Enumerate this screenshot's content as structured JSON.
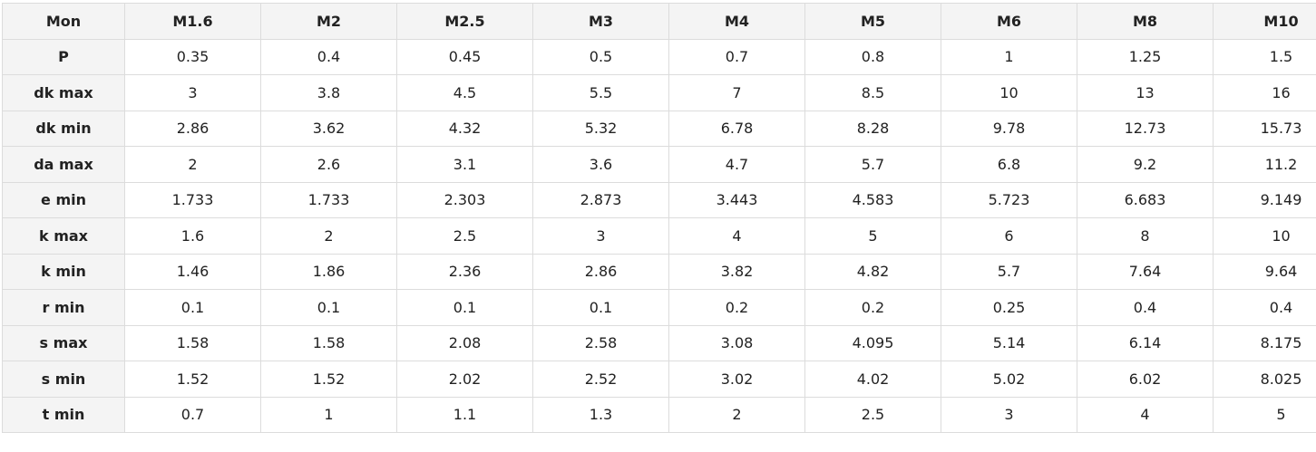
{
  "table": {
    "header": [
      "Mon",
      "M1.6",
      "M2",
      "M2.5",
      "M3",
      "M4",
      "M5",
      "M6",
      "M8",
      "M10"
    ],
    "rows": [
      [
        "P",
        "0.35",
        "0.4",
        "0.45",
        "0.5",
        "0.7",
        "0.8",
        "1",
        "1.25",
        "1.5"
      ],
      [
        "dk max",
        "3",
        "3.8",
        "4.5",
        "5.5",
        "7",
        "8.5",
        "10",
        "13",
        "16"
      ],
      [
        "dk min",
        "2.86",
        "3.62",
        "4.32",
        "5.32",
        "6.78",
        "8.28",
        "9.78",
        "12.73",
        "15.73"
      ],
      [
        "da max",
        "2",
        "2.6",
        "3.1",
        "3.6",
        "4.7",
        "5.7",
        "6.8",
        "9.2",
        "11.2"
      ],
      [
        "e min",
        "1.733",
        "1.733",
        "2.303",
        "2.873",
        "3.443",
        "4.583",
        "5.723",
        "6.683",
        "9.149"
      ],
      [
        "k max",
        "1.6",
        "2",
        "2.5",
        "3",
        "4",
        "5",
        "6",
        "8",
        "10"
      ],
      [
        "k min",
        "1.46",
        "1.86",
        "2.36",
        "2.86",
        "3.82",
        "4.82",
        "5.7",
        "7.64",
        "9.64"
      ],
      [
        "r min",
        "0.1",
        "0.1",
        "0.1",
        "0.1",
        "0.2",
        "0.2",
        "0.25",
        "0.4",
        "0.4"
      ],
      [
        "s max",
        "1.58",
        "1.58",
        "2.08",
        "2.58",
        "3.08",
        "4.095",
        "5.14",
        "6.14",
        "8.175"
      ],
      [
        "s min",
        "1.52",
        "1.52",
        "2.02",
        "2.52",
        "3.02",
        "4.02",
        "5.02",
        "6.02",
        "8.025"
      ],
      [
        "t min",
        "0.7",
        "1",
        "1.1",
        "1.3",
        "2",
        "2.5",
        "3",
        "4",
        "5"
      ]
    ]
  }
}
